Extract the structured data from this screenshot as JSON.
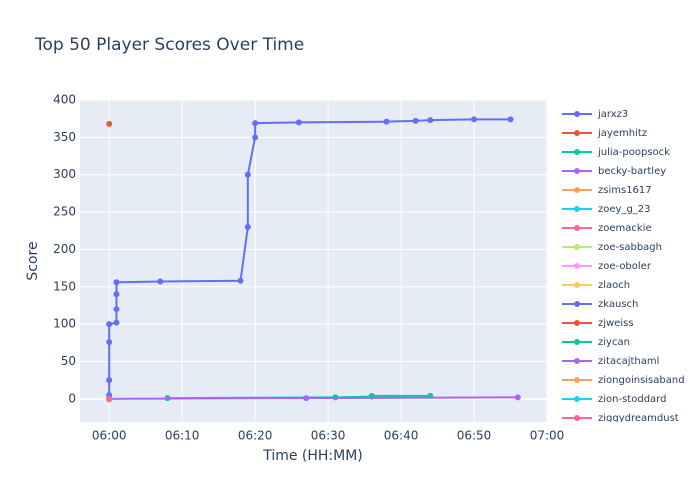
{
  "chart_data": {
    "type": "line",
    "title": "Top 50 Player Scores Over Time",
    "x_label": "Time (HH:MM)",
    "y_label": "Score",
    "xlim": [
      "05:56",
      "07:00"
    ],
    "xticks": [
      "06:00",
      "06:10",
      "06:20",
      "06:30",
      "06:40",
      "06:50",
      "07:00"
    ],
    "ylim": [
      -31,
      400
    ],
    "yticks": [
      0,
      50,
      100,
      150,
      200,
      250,
      300,
      350,
      400
    ],
    "grid": true,
    "legend": "right",
    "series": [
      {
        "name": "jarxz3",
        "color": "#636efa",
        "x": [
          "06:00",
          "06:00",
          "06:00",
          "06:00",
          "06:00",
          "06:01",
          "06:01",
          "06:01",
          "06:01",
          "06:07",
          "06:18",
          "06:19",
          "06:19",
          "06:20",
          "06:20",
          "06:26",
          "06:38",
          "06:42",
          "06:44",
          "06:50",
          "06:55"
        ],
        "values": [
          0,
          5,
          25,
          76,
          100,
          102,
          120,
          140,
          156,
          157,
          158,
          230,
          300,
          350,
          369,
          370,
          371,
          372,
          373,
          374,
          374
        ]
      },
      {
        "name": "jayemhitz",
        "color": "#EF553B",
        "x": [
          "06:00"
        ],
        "values": [
          368
        ]
      },
      {
        "name": "julia-poopsock",
        "color": "#00cc96",
        "x": [
          "06:08",
          "06:31",
          "06:36",
          "06:36",
          "06:44"
        ],
        "values": [
          1,
          2,
          3,
          4,
          4
        ]
      },
      {
        "name": "becky-bartley",
        "color": "#ab63fa",
        "x": [
          "06:00",
          "06:27",
          "06:56"
        ],
        "values": [
          0,
          1,
          2
        ]
      },
      {
        "name": "zsims1617",
        "color": "#FFA15A",
        "x": [
          "06:00"
        ],
        "values": [
          0
        ]
      },
      {
        "name": "zoey_g_23",
        "color": "#19d3f3",
        "x": [
          "06:00"
        ],
        "values": [
          0
        ]
      },
      {
        "name": "zoemackie",
        "color": "#FF6692",
        "x": [
          "06:00"
        ],
        "values": [
          0
        ]
      },
      {
        "name": "zoe-sabbagh",
        "color": "#B6E880",
        "x": [
          "06:00"
        ],
        "values": [
          0
        ]
      },
      {
        "name": "zoe-oboler",
        "color": "#FF97FF",
        "x": [
          "06:00"
        ],
        "values": [
          0
        ]
      },
      {
        "name": "zlaoch",
        "color": "#FECB52",
        "x": [
          "06:00"
        ],
        "values": [
          -1
        ]
      },
      {
        "name": "zkausch",
        "color": "#636efa",
        "x": [
          "06:00"
        ],
        "values": [
          0
        ]
      },
      {
        "name": "zjweiss",
        "color": "#EF553B",
        "x": [
          "06:00"
        ],
        "values": [
          0
        ]
      },
      {
        "name": "ziycan",
        "color": "#00cc96",
        "x": [
          "06:00"
        ],
        "values": [
          0
        ]
      },
      {
        "name": "zitacajthaml",
        "color": "#ab63fa",
        "x": [
          "06:00"
        ],
        "values": [
          0
        ]
      },
      {
        "name": "ziongoinsisaband",
        "color": "#FFA15A",
        "x": [
          "06:00"
        ],
        "values": [
          0
        ]
      },
      {
        "name": "zion-stoddard",
        "color": "#19d3f3",
        "x": [
          "06:00"
        ],
        "values": [
          0
        ]
      },
      {
        "name": "ziggydreamdust",
        "color": "#FF6692",
        "x": [
          "06:00"
        ],
        "values": [
          0
        ]
      }
    ]
  }
}
